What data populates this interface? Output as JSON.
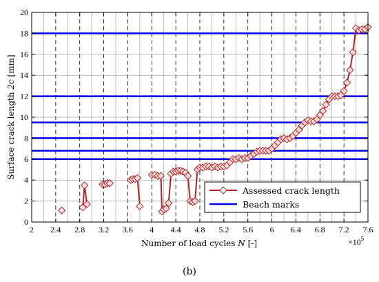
{
  "chart_data": {
    "type": "line",
    "xlabel_parts": [
      "Number of load cycles ",
      "N",
      " [-]"
    ],
    "ylabel_parts": [
      "Surface crack length ",
      "2c",
      " [mm]"
    ],
    "x_multiplier": "×10",
    "x_multiplier_exp": "5",
    "caption": "(b)",
    "xlim": [
      2,
      7.6
    ],
    "ylim": [
      0,
      20
    ],
    "x_ticks": [
      2,
      2.4,
      2.8,
      3.2,
      3.6,
      4,
      4.4,
      4.8,
      5.2,
      5.6,
      6,
      6.4,
      6.8,
      7.2,
      7.6
    ],
    "x_tick_labels": [
      "2",
      "2.4",
      "2.8",
      "3.2",
      "3.6",
      "4",
      "4.4",
      "4.8",
      "5.2",
      "5.6",
      "6",
      "6.4",
      "6.8",
      "7.2",
      "7.6"
    ],
    "y_ticks": [
      0,
      2,
      4,
      6,
      8,
      10,
      12,
      14,
      16,
      18,
      20
    ],
    "y_tick_labels": [
      "0",
      "2",
      "4",
      "6",
      "8",
      "10",
      "12",
      "14",
      "16",
      "18",
      "20"
    ],
    "grid": true,
    "legend": {
      "placement": "lower-right",
      "entries": [
        "Assessed crack length",
        "Beach marks"
      ]
    },
    "colors": {
      "assessed": "#b22222",
      "beach": "#0000e6"
    },
    "beach_marks": [
      6.0,
      6.8,
      8.0,
      9.5,
      12.0,
      18.0
    ],
    "series": [
      {
        "name": "Assessed crack length",
        "segments": [
          [
            [
              2.5,
              1.1
            ]
          ],
          [
            [
              2.85,
              1.4
            ],
            [
              2.88,
              3.5
            ],
            [
              2.92,
              1.7
            ]
          ],
          [
            [
              3.18,
              3.6
            ],
            [
              3.22,
              3.6
            ],
            [
              3.26,
              3.7
            ],
            [
              3.3,
              3.7
            ]
          ],
          [
            [
              3.65,
              4.0
            ],
            [
              3.68,
              4.1
            ],
            [
              3.72,
              4.1
            ],
            [
              3.76,
              4.2
            ],
            [
              3.8,
              1.5
            ]
          ],
          [
            [
              4.0,
              4.5
            ],
            [
              4.05,
              4.5
            ],
            [
              4.1,
              4.4
            ],
            [
              4.15,
              4.4
            ],
            [
              4.17,
              1.0
            ],
            [
              4.2,
              1.2
            ],
            [
              4.24,
              1.3
            ],
            [
              4.28,
              1.8
            ],
            [
              4.32,
              4.6
            ],
            [
              4.36,
              4.8
            ],
            [
              4.4,
              4.8
            ],
            [
              4.44,
              4.9
            ],
            [
              4.48,
              4.9
            ],
            [
              4.52,
              4.8
            ],
            [
              4.56,
              4.7
            ],
            [
              4.6,
              4.4
            ],
            [
              4.64,
              2.0
            ],
            [
              4.68,
              1.9
            ],
            [
              4.72,
              2.0
            ],
            [
              4.76,
              5.0
            ],
            [
              4.8,
              5.2
            ],
            [
              4.85,
              5.2
            ],
            [
              4.9,
              5.3
            ],
            [
              4.95,
              5.3
            ],
            [
              5.0,
              5.2
            ],
            [
              5.05,
              5.3
            ],
            [
              5.1,
              5.2
            ],
            [
              5.15,
              5.3
            ],
            [
              5.2,
              5.3
            ],
            [
              5.25,
              5.4
            ],
            [
              5.3,
              5.7
            ],
            [
              5.35,
              6.0
            ],
            [
              5.4,
              6.0
            ],
            [
              5.45,
              6.1
            ],
            [
              5.5,
              6.0
            ],
            [
              5.55,
              6.1
            ],
            [
              5.6,
              6.1
            ],
            [
              5.65,
              6.3
            ],
            [
              5.7,
              6.5
            ],
            [
              5.75,
              6.7
            ],
            [
              5.8,
              6.8
            ],
            [
              5.85,
              6.8
            ],
            [
              5.9,
              6.8
            ],
            [
              5.95,
              6.8
            ],
            [
              6.0,
              7.0
            ],
            [
              6.05,
              7.3
            ],
            [
              6.1,
              7.6
            ],
            [
              6.15,
              7.9
            ],
            [
              6.2,
              8.0
            ],
            [
              6.25,
              7.9
            ],
            [
              6.3,
              8.0
            ],
            [
              6.35,
              8.2
            ],
            [
              6.4,
              8.5
            ],
            [
              6.45,
              8.8
            ],
            [
              6.5,
              9.2
            ],
            [
              6.55,
              9.5
            ],
            [
              6.6,
              9.7
            ],
            [
              6.65,
              9.6
            ],
            [
              6.7,
              9.6
            ],
            [
              6.75,
              9.8
            ],
            [
              6.8,
              10.2
            ],
            [
              6.85,
              10.6
            ],
            [
              6.9,
              11.2
            ],
            [
              6.95,
              11.7
            ],
            [
              7.0,
              12.0
            ],
            [
              7.05,
              12.0
            ],
            [
              7.1,
              12.0
            ],
            [
              7.15,
              12.1
            ],
            [
              7.2,
              12.5
            ],
            [
              7.25,
              13.3
            ],
            [
              7.3,
              14.5
            ],
            [
              7.35,
              16.2
            ],
            [
              7.4,
              18.5
            ],
            [
              7.45,
              18.3
            ],
            [
              7.5,
              18.4
            ],
            [
              7.55,
              18.4
            ],
            [
              7.6,
              18.6
            ]
          ]
        ]
      }
    ]
  }
}
